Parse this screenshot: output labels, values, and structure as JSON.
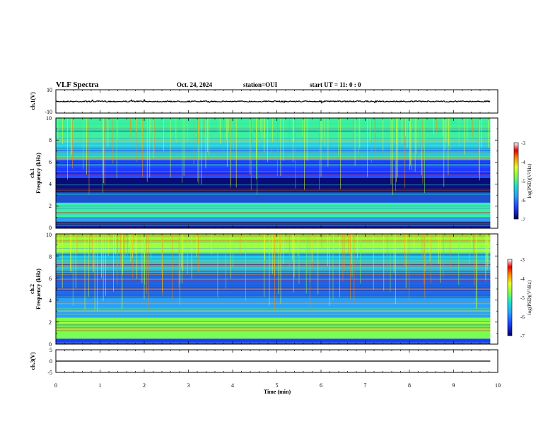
{
  "header": {
    "title": "VLF Spectra",
    "date": "Oct. 24, 2024",
    "station": "station=OUI",
    "start": "start UT =  11: 0  : 0"
  },
  "colors": {
    "background": "#ffffff",
    "axes": "#000000",
    "colormap": [
      "#0a0a78",
      "#1e3cff",
      "#28a0ff",
      "#1ee6c8",
      "#78ff50",
      "#e6ff28",
      "#ff8c00",
      "#e60000",
      "#ffffff"
    ]
  },
  "chart_data": [
    {
      "type": "line",
      "id": "ch1-waveform",
      "ylabel": "ch.1(V)",
      "ylim": [
        -10,
        10
      ],
      "yticks": [
        "10",
        "-10"
      ],
      "xlim": [
        0,
        10
      ],
      "series": [
        {
          "x": [
            0,
            9.83
          ],
          "y": [
            0,
            0
          ]
        }
      ]
    },
    {
      "type": "heatmap",
      "id": "ch1-spectrogram",
      "ylabel_top": "ch.1",
      "ylabel": "Frequency (kHz)",
      "ylim": [
        0,
        10
      ],
      "yticks": [
        "0",
        "2",
        "4",
        "6",
        "8",
        "10"
      ],
      "xlim": [
        0,
        10
      ],
      "x_data_end": 9.83,
      "colorbar": {
        "label": "log(PSD)(V²/Hz)",
        "range": [
          -7,
          -3
        ],
        "ticks": [
          "-3",
          "-4",
          "-5",
          "-6",
          "-7"
        ]
      }
    },
    {
      "type": "heatmap",
      "id": "ch2-spectrogram",
      "ylabel_top": "ch.2",
      "ylabel": "Frequency (kHz)",
      "ylim": [
        0,
        10
      ],
      "yticks": [
        "0",
        "2",
        "4",
        "6",
        "8",
        "10"
      ],
      "xlim": [
        0,
        10
      ],
      "x_data_end": 9.83,
      "colorbar": {
        "label": "log(PSD)(V²/Hz)",
        "range": [
          -7,
          -3
        ],
        "ticks": [
          "-3",
          "-4",
          "-5",
          "-6",
          "-7"
        ]
      }
    },
    {
      "type": "line",
      "id": "ch3-waveform",
      "ylabel": "ch.3(V)",
      "ylim": [
        -5,
        5
      ],
      "yticks": [
        "5",
        "0",
        "-5"
      ],
      "xlim": [
        0,
        10
      ],
      "series": [
        {
          "x": [
            0,
            9.83
          ],
          "y": [
            0,
            0
          ]
        }
      ]
    }
  ],
  "x_axis": {
    "label": "Time (min)",
    "ticks": [
      "0",
      "1",
      "2",
      "3",
      "4",
      "5",
      "6",
      "7",
      "8",
      "9",
      "10"
    ]
  }
}
